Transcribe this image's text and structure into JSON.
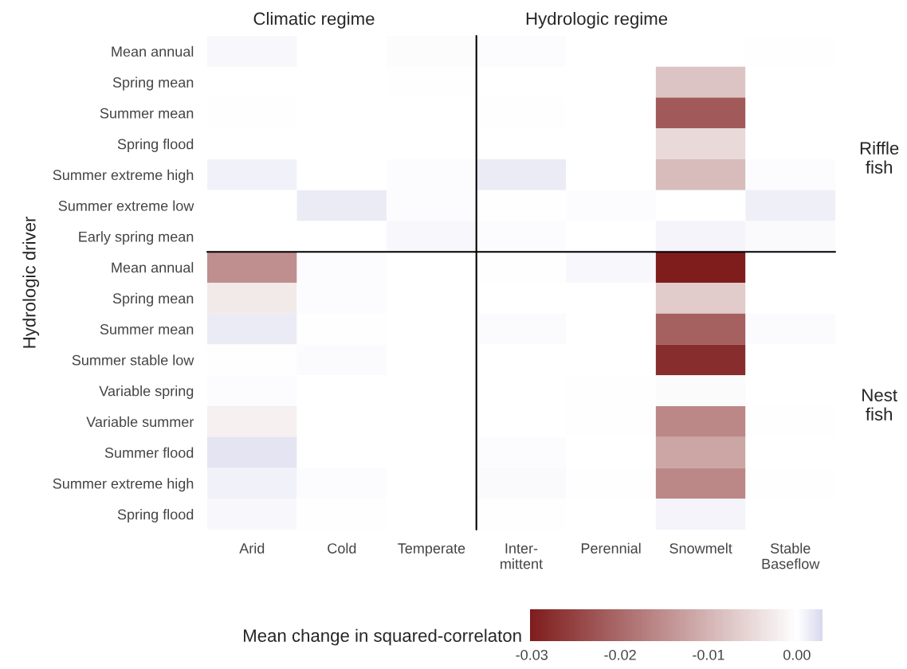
{
  "chart_data": {
    "type": "heatmap",
    "ylabel": "Hydrologic driver",
    "clabel": "Mean change in squared-correlaton",
    "categories": [
      "Arid",
      "Cold",
      "Temperate",
      "Inter-\nmittent",
      "Perennial",
      "Snowmelt",
      "Stable\nBaseflow"
    ],
    "y_categories": [
      "Mean annual",
      "Spring mean",
      "Summer mean",
      "Spring flood",
      "Summer extreme high",
      "Summer extreme low",
      "Early spring mean",
      "Mean annual",
      "Spring mean",
      "Summer mean",
      "Summer stable low",
      "Variable spring",
      "Variable summer",
      "Summer flood",
      "Summer extreme high",
      "Spring flood"
    ],
    "cells": [
      [
        0.0005,
        0,
        -0.0003,
        0.0002,
        0,
        0,
        -0.0002
      ],
      [
        0,
        0,
        0.0001,
        0,
        0,
        -0.008,
        0
      ],
      [
        0.0001,
        0,
        0,
        -0.0002,
        0,
        -0.022,
        0
      ],
      [
        0,
        0,
        0,
        0,
        0,
        -0.005,
        0
      ],
      [
        0.001,
        0,
        0.0002,
        0.0015,
        0,
        -0.009,
        0.0002
      ],
      [
        0,
        0.0015,
        0.0002,
        -0.0002,
        0.0002,
        0,
        0.0012
      ],
      [
        0,
        0,
        0.0005,
        0.0002,
        0,
        0.0008,
        0.0004
      ],
      [
        -0.015,
        0.0002,
        0,
        -0.0002,
        0.0005,
        -0.03,
        0
      ],
      [
        -0.003,
        0.0002,
        0,
        0,
        0,
        -0.007,
        0
      ],
      [
        0.0015,
        0.0001,
        0,
        0.0003,
        0,
        -0.021,
        0.0003
      ],
      [
        0.0001,
        0.0003,
        0,
        0,
        0,
        -0.028,
        0
      ],
      [
        0.0002,
        0,
        0,
        0,
        -0.0002,
        -0.0005,
        0
      ],
      [
        -0.002,
        0,
        0,
        0,
        0.0001,
        -0.016,
        0.0001
      ],
      [
        0.002,
        0,
        0,
        0.0002,
        0,
        -0.012,
        0
      ],
      [
        0.001,
        0.0002,
        0,
        0.0004,
        0.0001,
        -0.016,
        -0.0002
      ],
      [
        0.0005,
        0.0001,
        0,
        0.0001,
        0,
        0.0008,
        0
      ]
    ],
    "clim": [
      -0.0302,
      0.0029
    ],
    "cticks": [
      {
        "value": -0.03,
        "label": "-0.03"
      },
      {
        "value": -0.02,
        "label": "-0.02"
      },
      {
        "value": -0.01,
        "label": "-0.01"
      },
      {
        "value": 0,
        "label": "0.00"
      }
    ],
    "colors": [
      "#7f1d1d",
      "#ffffff",
      "#d8d8ee"
    ],
    "annotations": [
      "Climatic regime",
      "Hydrologic regime",
      "Riffle\nfish",
      "Nest\nfish"
    ]
  }
}
